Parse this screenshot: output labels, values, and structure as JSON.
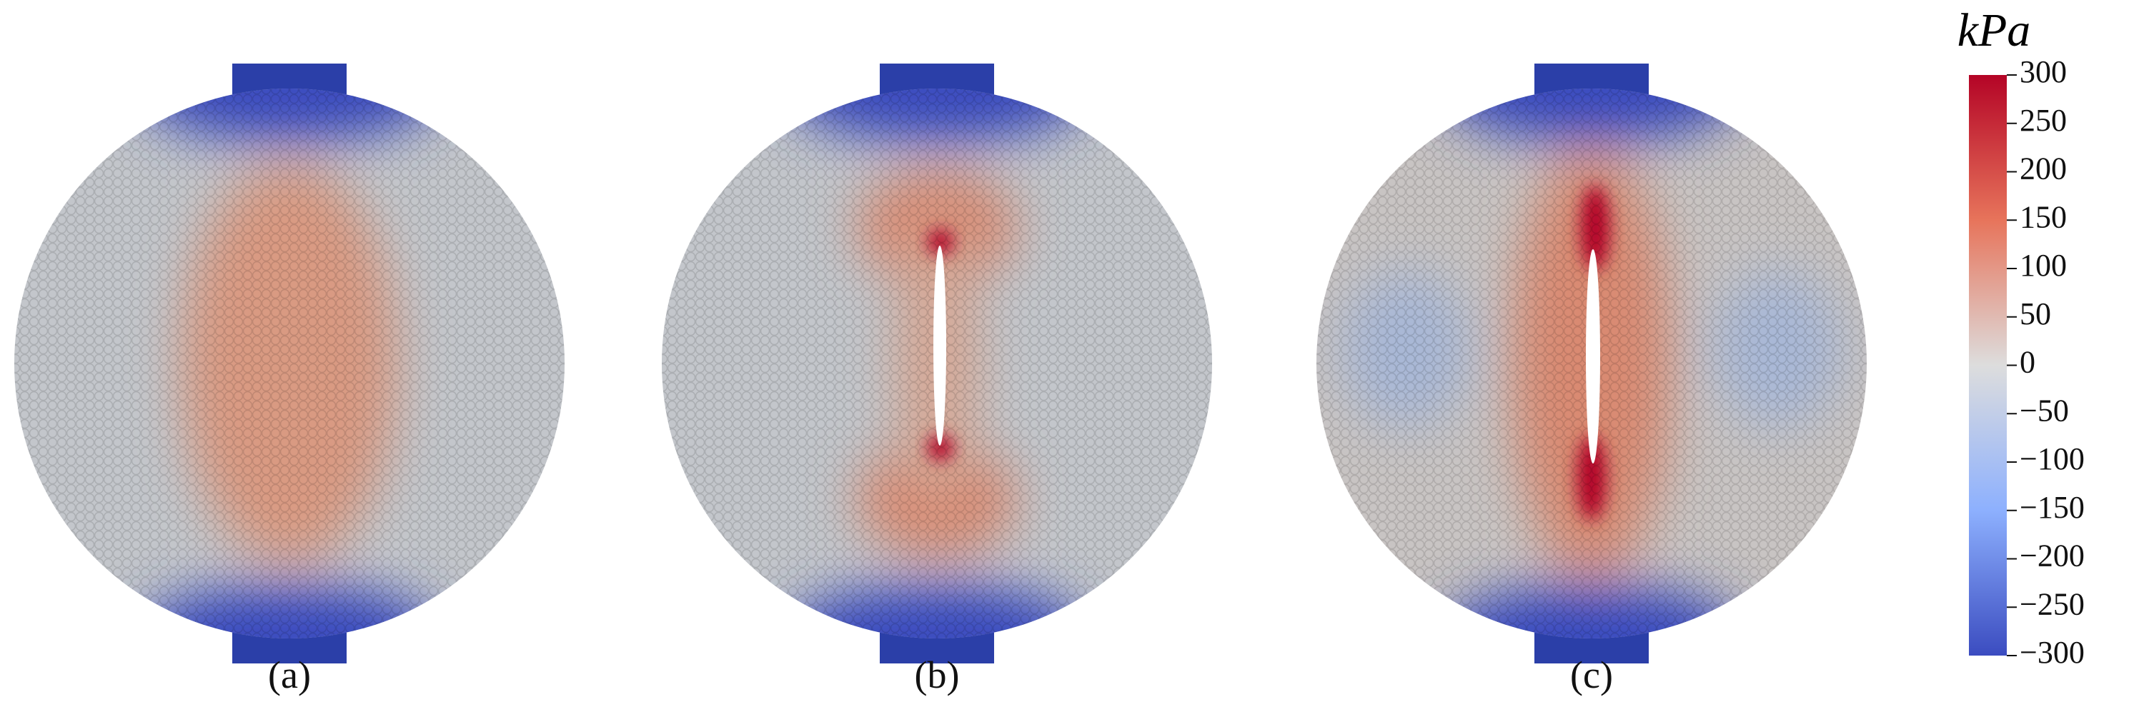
{
  "panels": [
    {
      "label": "(a)"
    },
    {
      "label": "(b)"
    },
    {
      "label": "(c)"
    }
  ],
  "colorbar": {
    "unit": "kPa",
    "lim": [
      -300,
      300
    ],
    "ticks": [
      300,
      250,
      200,
      150,
      100,
      50,
      0,
      {
        "value": -50,
        "label": "−50"
      },
      {
        "value": -100,
        "label": "−100"
      },
      {
        "value": -150,
        "label": "−150"
      },
      {
        "value": -200,
        "label": "−200"
      },
      {
        "value": -250,
        "label": "−250"
      },
      {
        "value": -300,
        "label": "−300"
      }
    ]
  }
}
